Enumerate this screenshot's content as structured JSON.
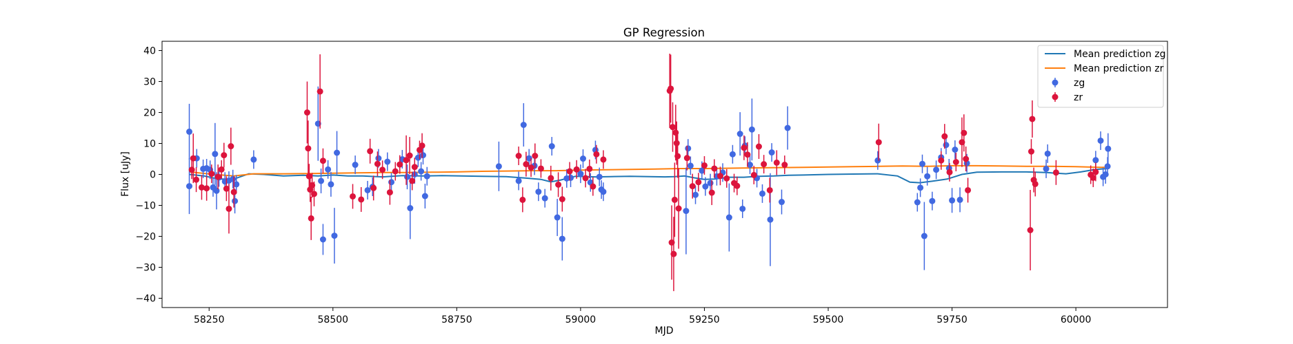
{
  "chart_data": {
    "type": "scatter",
    "title": "GP Regression",
    "xlabel": "MJD",
    "ylabel": "Flux [uJy]",
    "xlim": [
      58155,
      60185
    ],
    "ylim": [
      -43,
      43
    ],
    "xticks": [
      58250,
      58500,
      58750,
      59000,
      59250,
      59500,
      59750,
      60000
    ],
    "yticks": [
      -40,
      -30,
      -20,
      -10,
      0,
      10,
      20,
      30,
      40
    ],
    "grid": false,
    "legend_position": "top-right",
    "series": [
      {
        "name": "Mean prediction zg",
        "kind": "line",
        "color": "#1f77b4",
        "x": [
          58210,
          58240,
          58270,
          58300,
          58330,
          58360,
          58400,
          58440,
          58470,
          58500,
          58530,
          58560,
          58600,
          58640,
          58680,
          58720,
          58760,
          58800,
          58850,
          58890,
          58920,
          58940,
          58960,
          58990,
          59030,
          59060,
          59100,
          59140,
          59170,
          59190,
          59210,
          59230,
          59250,
          59270,
          59300,
          59330,
          59360,
          59390,
          59420,
          59450,
          59500,
          59550,
          59600,
          59640,
          59665,
          59685,
          59710,
          59740,
          59770,
          59800,
          59850,
          59900,
          59940,
          59980,
          60010,
          60040,
          60065
        ],
        "y": [
          0.0,
          -0.5,
          -1.5,
          -1.5,
          0.2,
          0.0,
          -0.5,
          -0.3,
          -0.5,
          -0.2,
          -0.5,
          -0.5,
          -0.8,
          -0.4,
          -0.5,
          -0.4,
          -0.5,
          -0.6,
          -0.7,
          -1.2,
          -1.6,
          -2.4,
          -1.8,
          -0.6,
          -0.8,
          -0.7,
          -0.6,
          -0.7,
          -0.8,
          -0.7,
          -0.5,
          -1.1,
          -1.6,
          -1.5,
          -0.9,
          -0.9,
          -0.6,
          -0.5,
          -0.3,
          -0.2,
          0.0,
          0.1,
          0.2,
          -0.5,
          -2.5,
          -2.7,
          -2.2,
          -1.5,
          0.0,
          0.7,
          0.8,
          0.8,
          0.6,
          0.2,
          0.8,
          1.6,
          1.9
        ]
      },
      {
        "name": "Mean prediction zr",
        "kind": "line",
        "color": "#ff7f0e",
        "x": [
          58210,
          58260,
          58300,
          58340,
          58400,
          58450,
          58500,
          58550,
          58600,
          58650,
          58700,
          58750,
          58800,
          58850,
          58900,
          58950,
          59000,
          59050,
          59100,
          59150,
          59200,
          59250,
          59300,
          59350,
          59400,
          59450,
          59500,
          59550,
          59600,
          59650,
          59700,
          59750,
          59800,
          59850,
          59900,
          59950,
          60000,
          60050,
          60065
        ],
        "y": [
          0.8,
          0.0,
          -0.5,
          0.2,
          0.2,
          0.3,
          0.4,
          0.5,
          0.6,
          0.6,
          0.7,
          0.8,
          1.0,
          1.1,
          1.2,
          1.2,
          1.4,
          1.5,
          1.6,
          1.7,
          1.9,
          1.9,
          2.0,
          2.1,
          2.2,
          2.3,
          2.4,
          2.5,
          2.6,
          2.7,
          2.6,
          2.8,
          2.8,
          2.7,
          2.6,
          2.6,
          2.5,
          2.3,
          2.3
        ]
      },
      {
        "name": "zg",
        "kind": "errorbar",
        "color": "#4169e1",
        "points": [
          [
            58210,
            13.8,
            9
          ],
          [
            58210,
            -3.8,
            9
          ],
          [
            58225,
            5.2,
            3
          ],
          [
            58238,
            1.8,
            3
          ],
          [
            58245,
            2.0,
            3
          ],
          [
            58252,
            1.5,
            3
          ],
          [
            58258,
            -4.2,
            3
          ],
          [
            58262,
            6.6,
            10
          ],
          [
            58265,
            -5.3,
            6
          ],
          [
            58270,
            -1.0,
            3
          ],
          [
            58282,
            -2.3,
            3
          ],
          [
            58290,
            -2.0,
            3
          ],
          [
            58298,
            -1.5,
            3
          ],
          [
            58302,
            -8.6,
            4
          ],
          [
            58305,
            -3.2,
            3
          ],
          [
            58340,
            4.8,
            3
          ],
          [
            58470,
            16.4,
            12
          ],
          [
            58476,
            -2.1,
            4
          ],
          [
            58480,
            -21.0,
            5
          ],
          [
            58490,
            1.6,
            3
          ],
          [
            58496,
            -3.2,
            4
          ],
          [
            58503,
            -19.8,
            9
          ],
          [
            58508,
            7.0,
            7
          ],
          [
            58545,
            3.1,
            3
          ],
          [
            58570,
            -5.1,
            3
          ],
          [
            58580,
            -4.0,
            3
          ],
          [
            58592,
            5.2,
            3
          ],
          [
            58610,
            4.1,
            3
          ],
          [
            58618,
            -2.5,
            3
          ],
          [
            58640,
            4.9,
            3
          ],
          [
            58650,
            -0.8,
            4
          ],
          [
            58656,
            -10.9,
            10
          ],
          [
            58665,
            0.0,
            3
          ],
          [
            58672,
            5.4,
            3
          ],
          [
            58678,
            1.0,
            3
          ],
          [
            58682,
            6.2,
            3
          ],
          [
            58686,
            -7.0,
            4
          ],
          [
            58690,
            -0.6,
            3
          ],
          [
            58835,
            2.6,
            8
          ],
          [
            58875,
            -2.1,
            3
          ],
          [
            58885,
            16.0,
            7
          ],
          [
            58896,
            5.2,
            3
          ],
          [
            58907,
            2.8,
            3
          ],
          [
            58915,
            -5.6,
            3
          ],
          [
            58928,
            -7.7,
            3
          ],
          [
            58942,
            9.1,
            3
          ],
          [
            58953,
            -13.9,
            6
          ],
          [
            58963,
            -20.8,
            7
          ],
          [
            58972,
            -1.3,
            3
          ],
          [
            58980,
            -1.1,
            3
          ],
          [
            59000,
            0.2,
            3
          ],
          [
            59005,
            5.1,
            3
          ],
          [
            59020,
            -2.6,
            3
          ],
          [
            59030,
            7.9,
            3
          ],
          [
            59038,
            -0.8,
            3
          ],
          [
            59042,
            -4.9,
            3
          ],
          [
            59046,
            -5.6,
            3
          ],
          [
            59213,
            -11.8,
            14
          ],
          [
            59217,
            8.4,
            3
          ],
          [
            59222,
            2.8,
            3
          ],
          [
            59232,
            -6.6,
            3
          ],
          [
            59245,
            1.2,
            3
          ],
          [
            59252,
            -3.9,
            3
          ],
          [
            59262,
            -2.8,
            3
          ],
          [
            59275,
            -0.6,
            3
          ],
          [
            59287,
            0.6,
            3
          ],
          [
            59300,
            -13.9,
            11
          ],
          [
            59307,
            6.5,
            3
          ],
          [
            59322,
            13.1,
            7
          ],
          [
            59327,
            -11.1,
            3
          ],
          [
            59332,
            9.3,
            3
          ],
          [
            59342,
            3.1,
            3
          ],
          [
            59346,
            14.5,
            10
          ],
          [
            59356,
            -1.2,
            3
          ],
          [
            59367,
            -6.2,
            3
          ],
          [
            59383,
            -14.6,
            15
          ],
          [
            59386,
            7.1,
            3
          ],
          [
            59406,
            -8.9,
            4
          ],
          [
            59418,
            15.0,
            7
          ],
          [
            59600,
            4.5,
            3
          ],
          [
            59680,
            -9.0,
            3
          ],
          [
            59686,
            -4.3,
            3
          ],
          [
            59690,
            3.4,
            3
          ],
          [
            59694,
            -19.9,
            11
          ],
          [
            59700,
            -0.6,
            3
          ],
          [
            59710,
            -8.6,
            3
          ],
          [
            59718,
            1.5,
            3
          ],
          [
            59728,
            5.5,
            3
          ],
          [
            59738,
            9.5,
            3
          ],
          [
            59744,
            2.0,
            3
          ],
          [
            59750,
            -8.4,
            4
          ],
          [
            59756,
            8.0,
            3
          ],
          [
            59766,
            -8.2,
            4
          ],
          [
            59780,
            3.6,
            3
          ],
          [
            59940,
            1.8,
            3
          ],
          [
            59943,
            6.7,
            3
          ],
          [
            60040,
            4.6,
            3
          ],
          [
            60050,
            10.9,
            3
          ],
          [
            60055,
            -0.8,
            3
          ],
          [
            60060,
            0.0,
            3
          ],
          [
            60064,
            2.6,
            3
          ],
          [
            60065,
            8.3,
            5
          ]
        ]
      },
      {
        "name": "zr",
        "kind": "errorbar",
        "color": "#dc143c",
        "points": [
          [
            58215,
            1.5,
            3
          ],
          [
            58218,
            5.2,
            8
          ],
          [
            58224,
            -1.7,
            4
          ],
          [
            58235,
            -4.2,
            4
          ],
          [
            58245,
            -4.5,
            4
          ],
          [
            58255,
            0.2,
            3
          ],
          [
            58268,
            -0.8,
            4
          ],
          [
            58275,
            1.6,
            3
          ],
          [
            58280,
            6.2,
            4
          ],
          [
            58285,
            -4.6,
            4
          ],
          [
            58290,
            -11.1,
            8
          ],
          [
            58294,
            9.1,
            6
          ],
          [
            58300,
            -5.7,
            5
          ],
          [
            58448,
            20.0,
            10
          ],
          [
            58450,
            8.4,
            9
          ],
          [
            58452,
            -0.6,
            4
          ],
          [
            58454,
            -4.9,
            4
          ],
          [
            58456,
            -14.2,
            7
          ],
          [
            58458,
            -3.5,
            4
          ],
          [
            58462,
            -6.3,
            4
          ],
          [
            58474,
            26.8,
            12
          ],
          [
            58480,
            4.4,
            4
          ],
          [
            58540,
            -7.1,
            4
          ],
          [
            58557,
            -8.1,
            4
          ],
          [
            58575,
            7.5,
            4
          ],
          [
            58582,
            -4.4,
            4
          ],
          [
            58590,
            3.4,
            4
          ],
          [
            58600,
            1.5,
            3
          ],
          [
            58615,
            -5.8,
            4
          ],
          [
            58626,
            1.0,
            3
          ],
          [
            58635,
            3.2,
            3
          ],
          [
            58648,
            4.6,
            8
          ],
          [
            58655,
            6.1,
            6
          ],
          [
            58660,
            -2.1,
            3
          ],
          [
            58665,
            2.4,
            3
          ],
          [
            58675,
            7.9,
            3
          ],
          [
            58680,
            9.3,
            4
          ],
          [
            58875,
            6.0,
            3
          ],
          [
            58883,
            -8.2,
            4
          ],
          [
            58890,
            3.3,
            4
          ],
          [
            58900,
            2.2,
            3
          ],
          [
            58908,
            6.0,
            4
          ],
          [
            58920,
            1.9,
            3
          ],
          [
            58940,
            -1.2,
            4
          ],
          [
            58955,
            -3.3,
            4
          ],
          [
            58963,
            -8.0,
            4
          ],
          [
            58978,
            1.0,
            3
          ],
          [
            58992,
            1.6,
            3
          ],
          [
            59010,
            -1.2,
            3
          ],
          [
            59018,
            1.8,
            3
          ],
          [
            59025,
            -3.9,
            3
          ],
          [
            59032,
            6.5,
            3
          ],
          [
            59046,
            4.8,
            3
          ],
          [
            59180,
            27.0,
            12
          ],
          [
            59182,
            27.7,
            11
          ],
          [
            59184,
            -22.0,
            12
          ],
          [
            59186,
            15.3,
            8
          ],
          [
            59188,
            -25.7,
            12
          ],
          [
            59190,
            -8.2,
            12
          ],
          [
            59192,
            13.5,
            9
          ],
          [
            59194,
            10.1,
            7
          ],
          [
            59196,
            5.9,
            7
          ],
          [
            59198,
            -11.0,
            13
          ],
          [
            59215,
            5.3,
            4
          ],
          [
            59226,
            -3.8,
            4
          ],
          [
            59238,
            -2.5,
            3
          ],
          [
            59250,
            2.9,
            3
          ],
          [
            59265,
            -5.9,
            4
          ],
          [
            59270,
            1.9,
            3
          ],
          [
            59282,
            -0.5,
            3
          ],
          [
            59295,
            -1.3,
            3
          ],
          [
            59310,
            -2.8,
            3
          ],
          [
            59316,
            -3.7,
            3
          ],
          [
            59330,
            8.6,
            4
          ],
          [
            59337,
            6.4,
            4
          ],
          [
            59350,
            -0.2,
            3
          ],
          [
            59360,
            9.0,
            4
          ],
          [
            59370,
            3.3,
            3
          ],
          [
            59382,
            -5.1,
            4
          ],
          [
            59396,
            3.8,
            4
          ],
          [
            59412,
            3.1,
            3
          ],
          [
            59602,
            10.4,
            6
          ],
          [
            59728,
            4.5,
            3
          ],
          [
            59735,
            12.3,
            4
          ],
          [
            59745,
            0.7,
            3
          ],
          [
            59758,
            4.0,
            3
          ],
          [
            59770,
            10.4,
            8
          ],
          [
            59774,
            13.4,
            6
          ],
          [
            59778,
            5.0,
            4
          ],
          [
            59782,
            -5.1,
            4
          ],
          [
            59908,
            -18.0,
            13
          ],
          [
            59910,
            7.4,
            4
          ],
          [
            59912,
            17.9,
            6
          ],
          [
            59915,
            -1.8,
            4
          ],
          [
            59918,
            -3.1,
            4
          ],
          [
            59960,
            0.6,
            4
          ],
          [
            60030,
            -0.1,
            3
          ],
          [
            60035,
            -1.1,
            3
          ],
          [
            60040,
            0.8,
            3
          ]
        ]
      }
    ]
  }
}
